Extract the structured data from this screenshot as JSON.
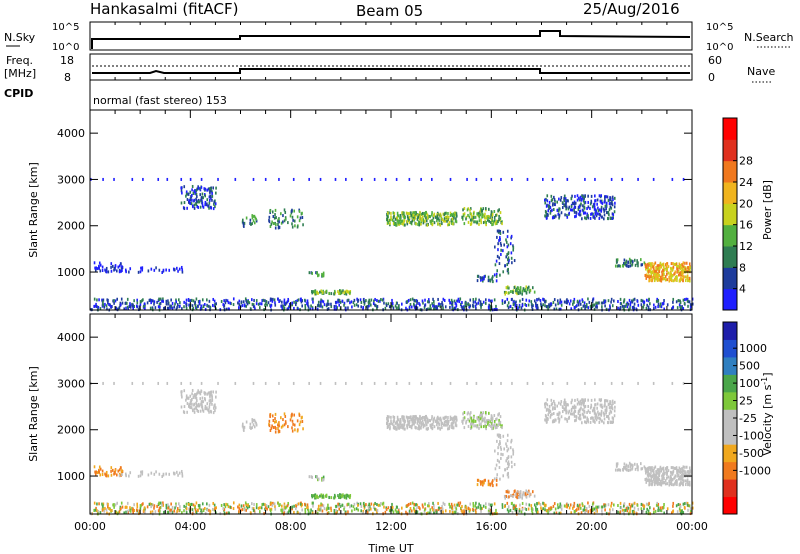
{
  "header": {
    "station": "Hankasalmi (fitACF)",
    "beam": "Beam 05",
    "date": "25/Aug/2016"
  },
  "top_panels": {
    "nsky_label": "N.Sky",
    "nsky_ticks": [
      "10^5",
      "10^0"
    ],
    "nsearch_label": "N.Search",
    "nsearch_ticks": [
      "10^5",
      "10^0"
    ],
    "freq_label_1": "Freq.",
    "freq_label_2": "[MHz]",
    "freq_ticks": [
      "18",
      "8"
    ],
    "nave_label": "Nave",
    "nave_ticks": [
      "60",
      "0"
    ],
    "cpid_label": "CPID",
    "cpid_text": "normal (fast stereo) 153"
  },
  "colors": {
    "power_scale": [
      "#1f1fff",
      "#1e3c9c",
      "#2f7d52",
      "#52b03f",
      "#c8d21e",
      "#f0b41e",
      "#f0781e",
      "#e0301e",
      "#ff0000"
    ],
    "velocity_scale": [
      "#ff0000",
      "#e0301e",
      "#f07a1e",
      "#f0a81e",
      "#c0c0c0",
      "#c0c0c0",
      "#7ec83a",
      "#4aa64a",
      "#2f7fc0",
      "#1f4fd0",
      "#1e1eaa"
    ],
    "ground_scatter": "#c0c0c0"
  },
  "chart_data": [
    {
      "type": "heatmap",
      "name": "power",
      "ylabel": "Slant Range [km]",
      "ylim": [
        180,
        4500
      ],
      "yticks": [
        "1000",
        "2000",
        "3000",
        "4000"
      ],
      "ytick_values": [
        1000,
        2000,
        3000,
        4000
      ],
      "colorbar": {
        "label": "Power [dB]",
        "range": [
          0,
          32
        ],
        "ticks": [
          "4",
          "8",
          "12",
          "16",
          "20",
          "24",
          "28"
        ],
        "tick_values": [
          4,
          8,
          12,
          16,
          20,
          24,
          28
        ]
      }
    },
    {
      "type": "heatmap",
      "name": "velocity",
      "xlabel": "Time UT",
      "ylabel": "Slant Range [km]",
      "ylim": [
        180,
        4500
      ],
      "yticks": [
        "1000",
        "2000",
        "3000",
        "4000"
      ],
      "ytick_values": [
        1000,
        2000,
        3000,
        4000
      ],
      "xticks": [
        "00:00",
        "04:00",
        "08:00",
        "12:00",
        "16:00",
        "20:00",
        "00:00"
      ],
      "xtick_values": [
        0,
        4,
        8,
        12,
        16,
        20,
        24
      ],
      "colorbar": {
        "label": "Velocity [m s",
        "label_sup": "-1",
        "label_end": "]",
        "ticks": [
          "1000",
          "500",
          "100",
          "25",
          "-25",
          "-100",
          "-500",
          "-1000"
        ]
      }
    }
  ]
}
